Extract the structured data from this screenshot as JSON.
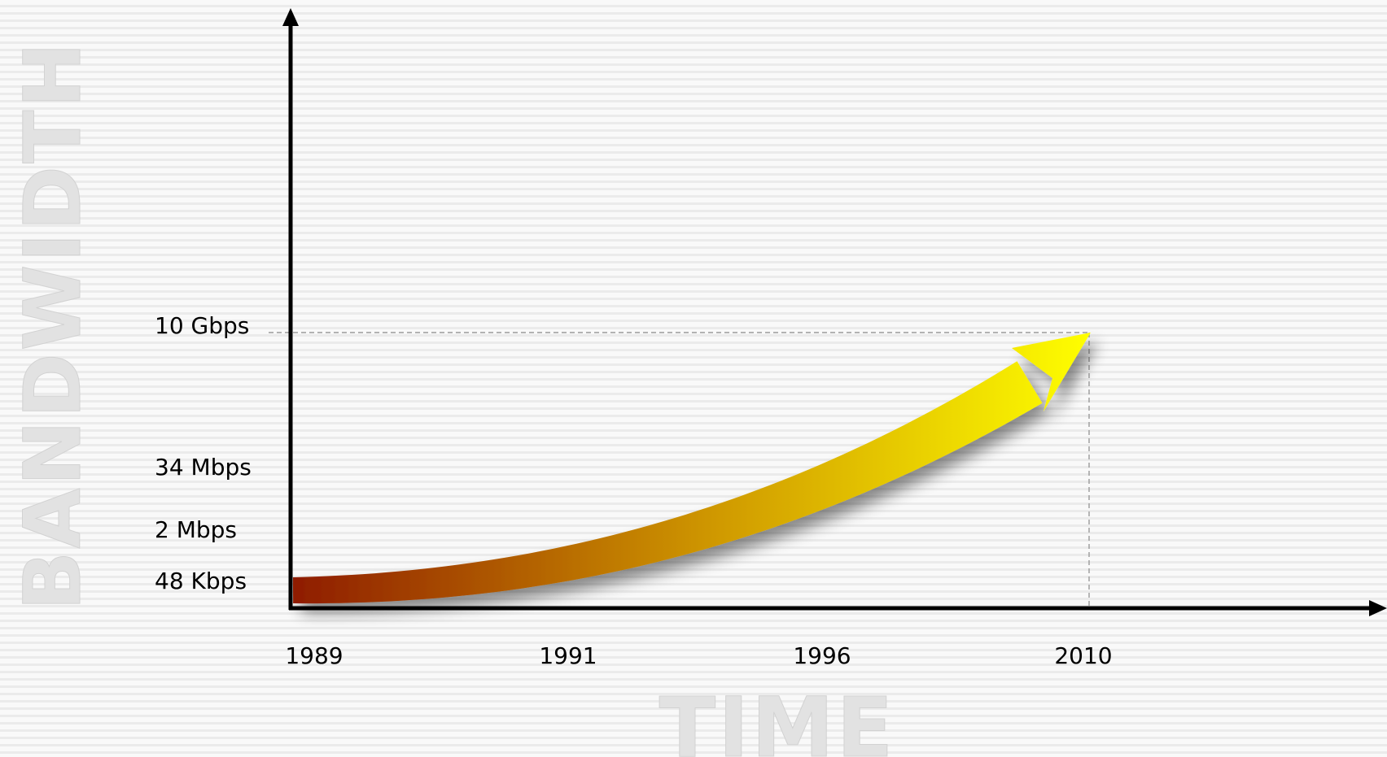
{
  "chart_data": {
    "type": "line",
    "title": "",
    "xlabel": "TIME",
    "ylabel": "BANDWIDTH",
    "x_ticks": [
      "1989",
      "1991",
      "1996",
      "2010"
    ],
    "y_ticks": [
      "48 Kbps",
      "2 Mbps",
      "34 Mbps",
      "10 Gbps"
    ],
    "series": [
      {
        "x": [
          "1989",
          "1991",
          "1996",
          "2010"
        ],
        "y": [
          "48 Kbps",
          "2 Mbps",
          "34 Mbps",
          "10 Gbps"
        ]
      }
    ],
    "grid": false,
    "legend": "none",
    "colors": {
      "gradient_start": "#8b1500",
      "gradient_mid": "#d09a00",
      "gradient_end": "#ffff00",
      "axis": "#000000",
      "guide_line": "#9a9a9a",
      "big_label": "#e2e2e2"
    }
  }
}
